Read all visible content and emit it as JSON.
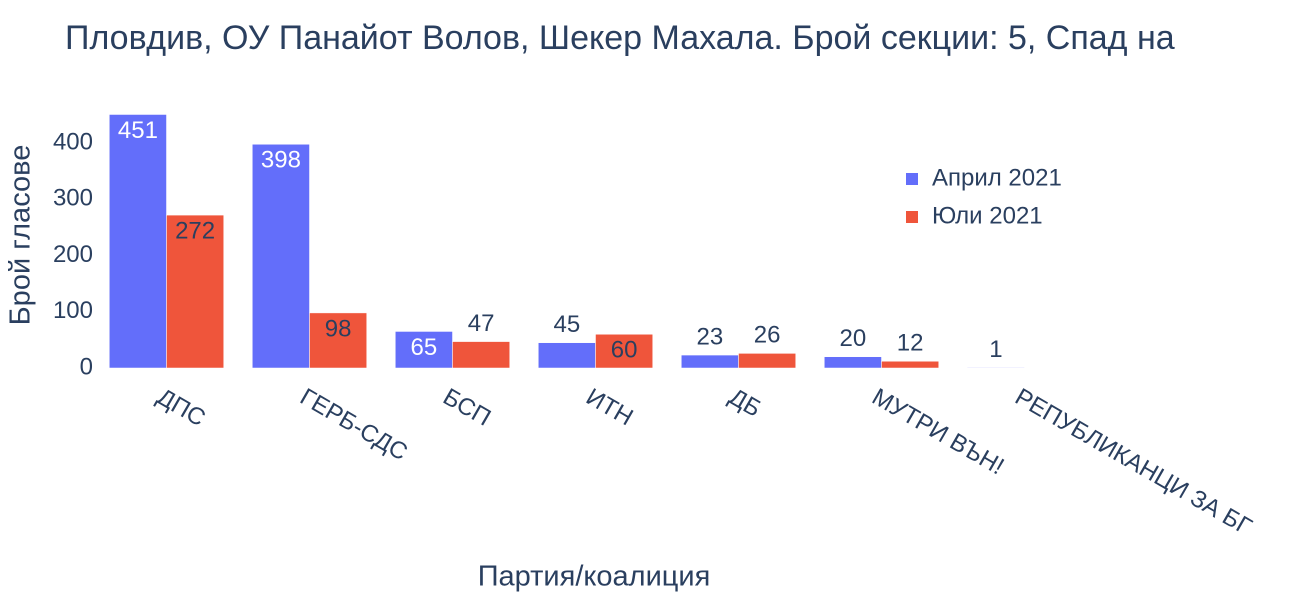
{
  "chart_data": {
    "type": "bar",
    "title": "Пловдив, ОУ Панайот Волов, Шекер Махала. Брой секции: 5,  Спад на",
    "x_label": "Партия/коалиция",
    "y_label": "Брой гласове",
    "categories": [
      "ДПС",
      "ГЕРБ-СДС",
      "БСП",
      "ИТН",
      "ДБ",
      "МУТРИ ВЪН!",
      "РЕПУБЛИКАНЦИ ЗА БГ"
    ],
    "series": [
      {
        "name": "Април 2021",
        "color": "#636efa",
        "values": [
          451,
          398,
          65,
          45,
          23,
          20,
          1
        ]
      },
      {
        "name": "Юли 2021",
        "color": "#ef553b",
        "values": [
          272,
          98,
          47,
          60,
          26,
          12,
          null
        ]
      }
    ],
    "ylim": [
      0,
      475
    ],
    "yticks": [
      0,
      100,
      200,
      300,
      400
    ],
    "legend": "top-right"
  }
}
